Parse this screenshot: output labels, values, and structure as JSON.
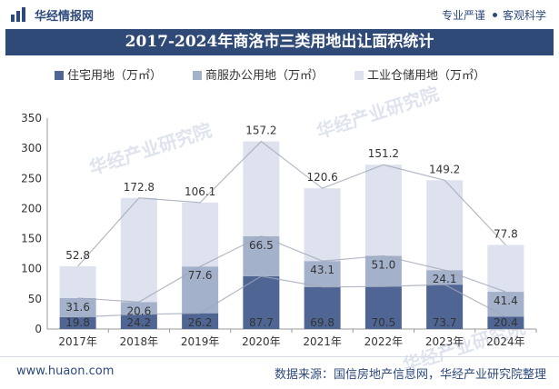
{
  "header": {
    "brand": "华经情报网",
    "tagline_left": "专业严谨",
    "tagline_right": "客观科学"
  },
  "footer": {
    "url": "www.huaon.com",
    "source": "数据来源：国信房地产信息网，华经产业研究院整理"
  },
  "watermark": "华经产业研究院",
  "colors": {
    "residential": "#4f6594",
    "commercial": "#a4b1cb",
    "industrial": "#dde2ee",
    "title_bg": "#2f4a77",
    "line": "#a0a8b8"
  },
  "chart_data": {
    "type": "bar",
    "stacked": true,
    "title": "2017-2024年商洛市三类用地出让面积统计",
    "categories": [
      "2017年",
      "2018年",
      "2019年",
      "2020年",
      "2021年",
      "2022年",
      "2023年",
      "2024年"
    ],
    "series": [
      {
        "name": "住宅用地（万㎡）",
        "values": [
          19.8,
          24.2,
          26.2,
          87.7,
          69.8,
          70.5,
          73.7,
          20.4
        ]
      },
      {
        "name": "商服办公用地（万㎡）",
        "values": [
          31.6,
          20.6,
          77.6,
          66.5,
          43.1,
          51.0,
          24.1,
          41.4
        ]
      },
      {
        "name": "工业仓储用地（万㎡）",
        "values": [
          52.8,
          172.8,
          106.1,
          157.2,
          120.6,
          151.2,
          149.2,
          77.8
        ]
      }
    ],
    "ylim": [
      0,
      350
    ],
    "yticks": [
      0,
      50,
      100,
      150,
      200,
      250,
      300,
      350
    ],
    "grid": false,
    "legend": "top"
  }
}
